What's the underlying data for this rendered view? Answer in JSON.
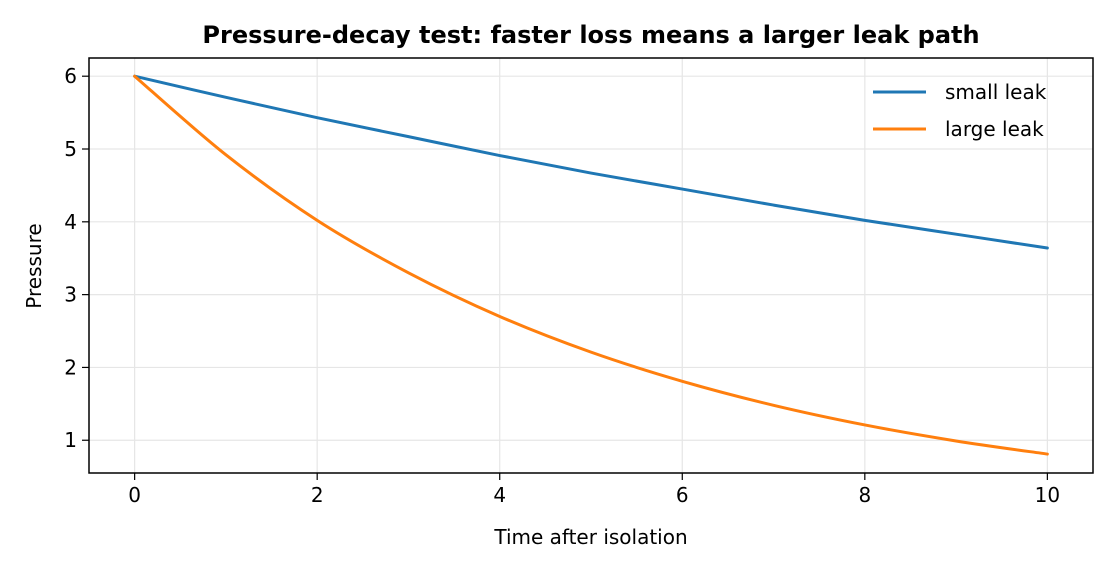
{
  "chart_data": {
    "type": "line",
    "title": "Pressure-decay test: faster loss means a larger leak path",
    "xlabel": "Time after isolation",
    "ylabel": "Pressure",
    "xlim": [
      -0.5,
      10.5
    ],
    "ylim": [
      0.55,
      6.25
    ],
    "xticks": [
      0,
      2,
      4,
      6,
      8,
      10
    ],
    "yticks": [
      1,
      2,
      3,
      4,
      5,
      6
    ],
    "xtick_labels": [
      "0",
      "2",
      "4",
      "6",
      "8",
      "10"
    ],
    "ytick_labels": [
      "1",
      "2",
      "3",
      "4",
      "5",
      "6"
    ],
    "grid": true,
    "legend_position": "top-right",
    "series": [
      {
        "name": "small leak",
        "color": "#1f77b4",
        "x": [
          0,
          1,
          2,
          3,
          4,
          5,
          6,
          7,
          8,
          9,
          10
        ],
        "y": [
          6.0,
          5.71,
          5.43,
          5.17,
          4.91,
          4.67,
          4.45,
          4.23,
          4.02,
          3.83,
          3.64
        ]
      },
      {
        "name": "large leak",
        "color": "#ff7f0e",
        "x": [
          0,
          1,
          2,
          3,
          4,
          5,
          6,
          7,
          8,
          9,
          10
        ],
        "y": [
          6.0,
          4.92,
          4.02,
          3.3,
          2.7,
          2.21,
          1.81,
          1.48,
          1.21,
          0.99,
          0.81
        ]
      }
    ]
  }
}
